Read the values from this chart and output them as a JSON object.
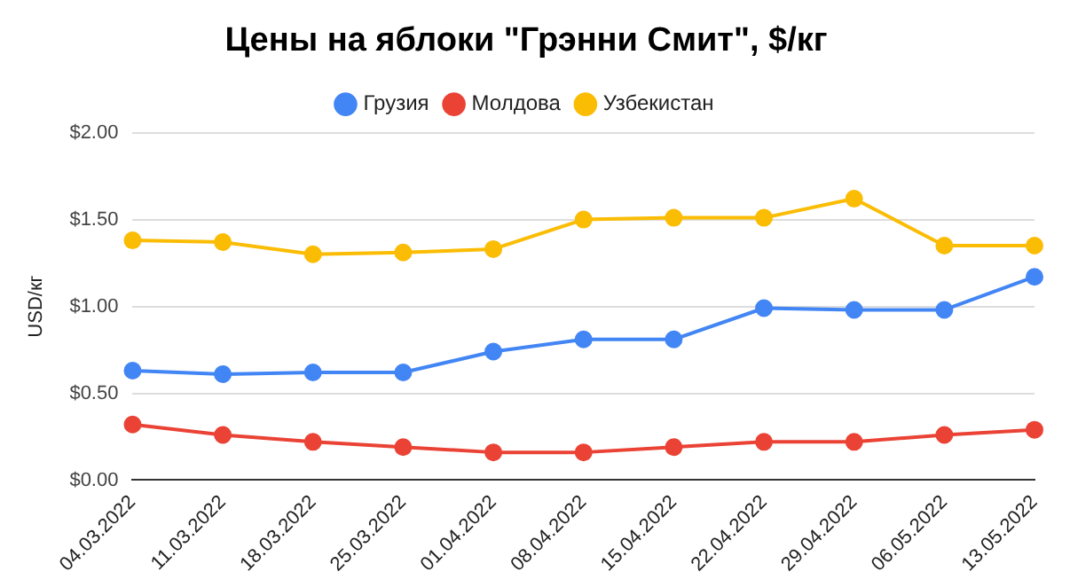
{
  "chart_data": {
    "type": "line",
    "title": "Цены на яблоки \"Грэнни Смит\", $/кг",
    "ylabel": "USD/кг",
    "categories": [
      "04.03.2022",
      "11.03.2022",
      "18.03.2022",
      "25.03.2022",
      "01.04.2022",
      "08.04.2022",
      "15.04.2022",
      "22.04.2022",
      "29.04.2022",
      "06.05.2022",
      "13.05.2022"
    ],
    "series": [
      {
        "name": "Грузия",
        "color": "#4285f4",
        "values": [
          0.63,
          0.61,
          0.62,
          0.62,
          0.74,
          0.81,
          0.81,
          0.99,
          0.98,
          0.98,
          1.17
        ]
      },
      {
        "name": "Молдова",
        "color": "#ea4335",
        "values": [
          0.32,
          0.26,
          0.22,
          0.19,
          0.16,
          0.16,
          0.19,
          0.22,
          0.22,
          0.26,
          0.29
        ]
      },
      {
        "name": "Узбекистан",
        "color": "#fbbc04",
        "values": [
          1.38,
          1.37,
          1.3,
          1.31,
          1.33,
          1.5,
          1.51,
          1.51,
          1.62,
          1.35,
          1.35
        ]
      }
    ],
    "ylim": [
      0,
      2
    ],
    "yticks": [
      {
        "value": 0,
        "label": "$0.00"
      },
      {
        "value": 0.5,
        "label": "$0.50"
      },
      {
        "value": 1,
        "label": "$1.00"
      },
      {
        "value": 1.5,
        "label": "$1.50"
      },
      {
        "value": 2,
        "label": "$2.00"
      }
    ],
    "grid": "y",
    "legend": "top",
    "marker": "circle",
    "line_style": "solid"
  }
}
